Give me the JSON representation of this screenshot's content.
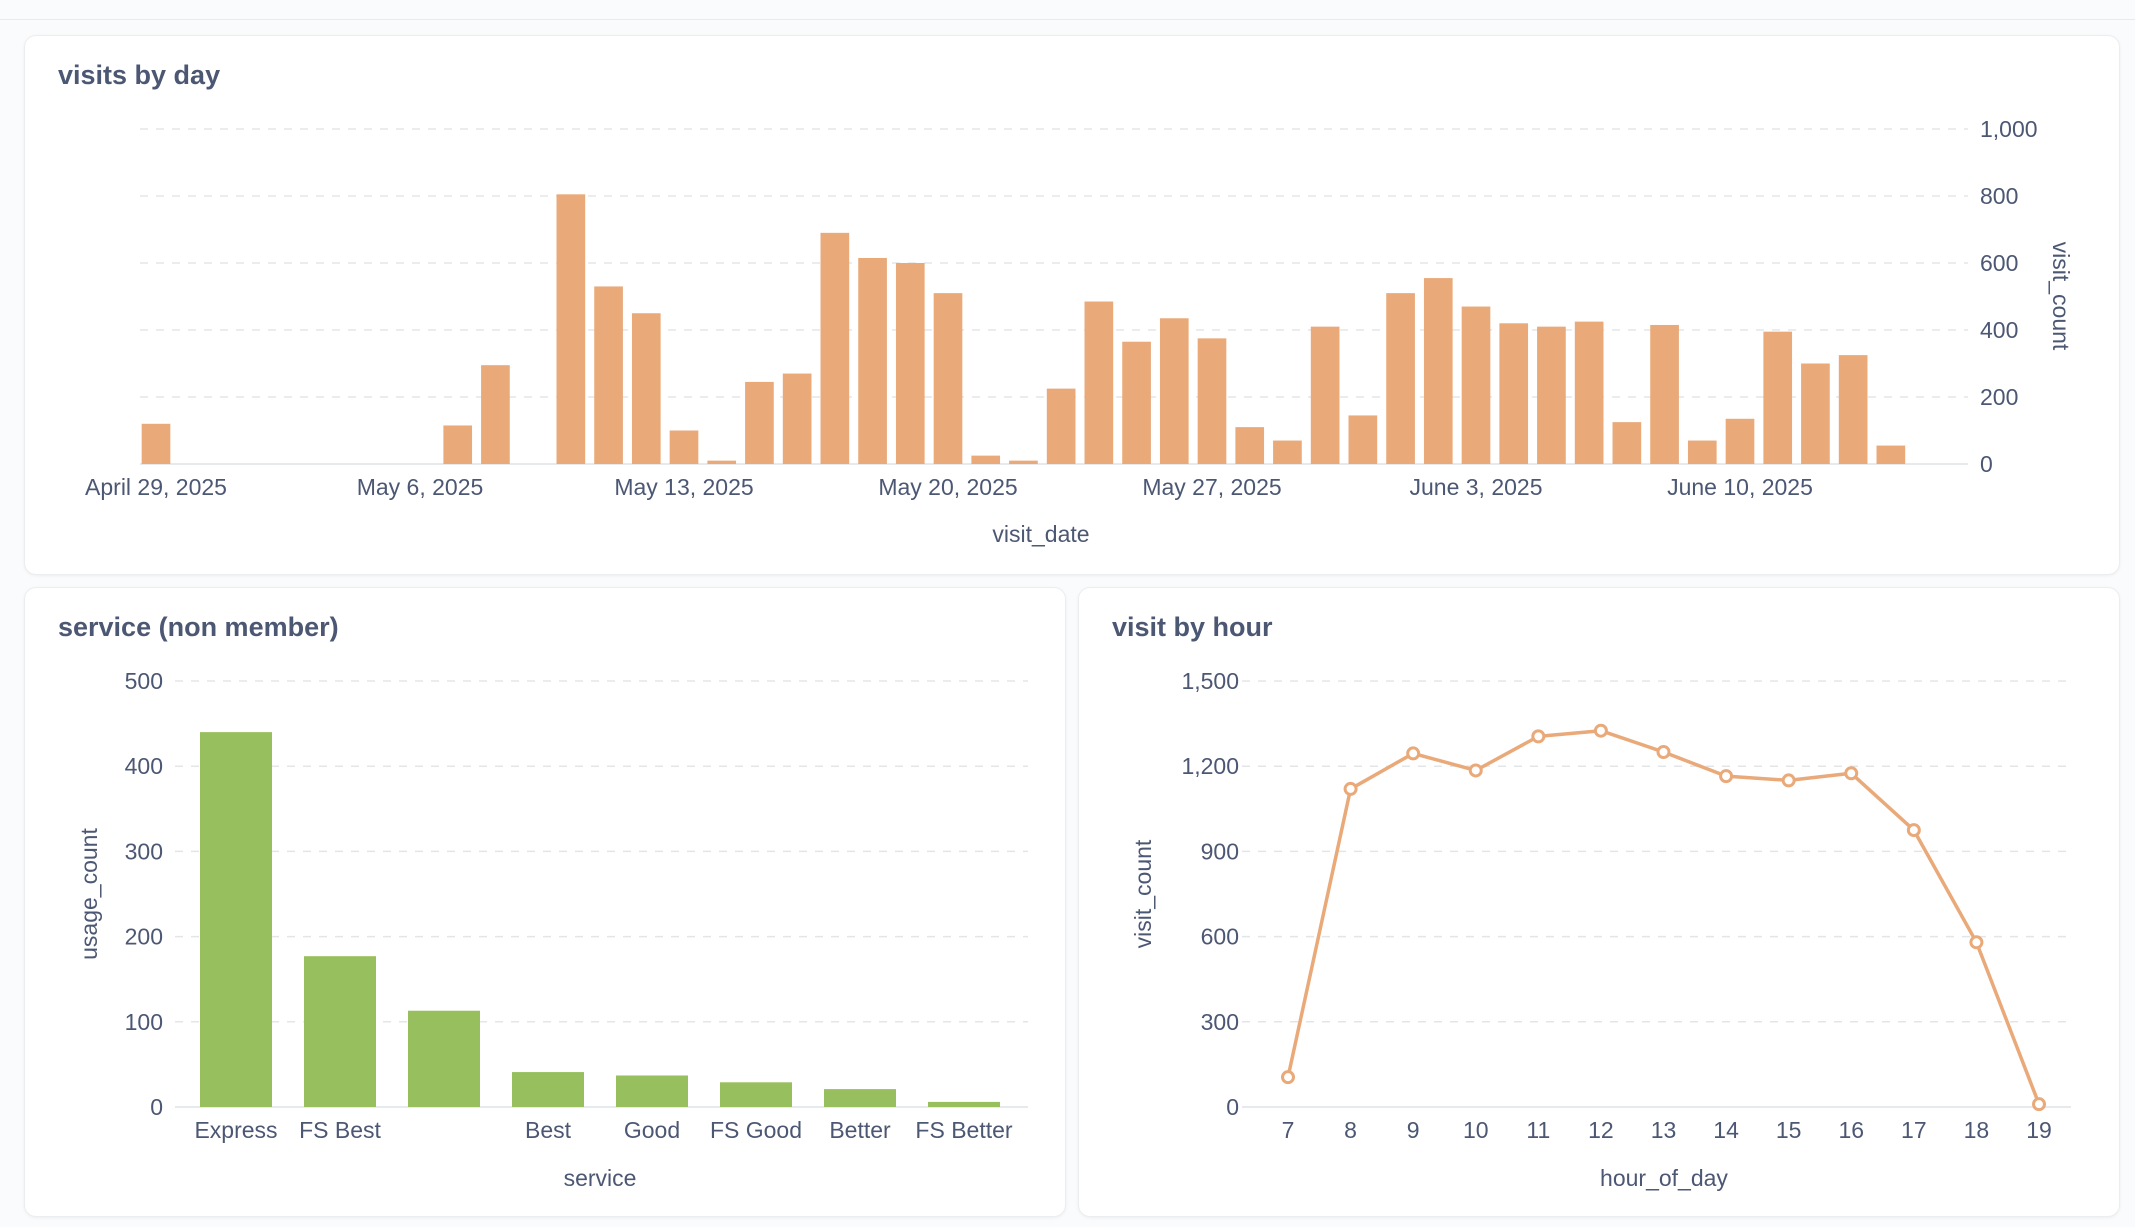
{
  "cards": {
    "visits_by_day": {
      "title": "visits by day"
    },
    "service": {
      "title": "service (non member)"
    },
    "visit_by_hour": {
      "title": "visit by hour"
    }
  },
  "colors": {
    "orange": "#e9a979",
    "green": "#98bf5d",
    "line": "#e9a979"
  },
  "chart_data": [
    {
      "type": "bar",
      "title": "visits by day",
      "xlabel": "visit_date",
      "ylabel": "visit_count",
      "y_axis_side": "right",
      "ylim": [
        0,
        1000
      ],
      "yticks": [
        0,
        200,
        400,
        600,
        800,
        1000
      ],
      "ytick_labels": [
        "0",
        "200",
        "400",
        "600",
        "800",
        "1,000"
      ],
      "x_tick_labels": [
        "April 29, 2025",
        "May 6, 2025",
        "May 13, 2025",
        "May 20, 2025",
        "May 27, 2025",
        "June 3, 2025",
        "June 10, 2025"
      ],
      "x_tick_dates": [
        "2025-04-29",
        "2025-05-06",
        "2025-05-13",
        "2025-05-20",
        "2025-05-27",
        "2025-06-03",
        "2025-06-10"
      ],
      "grid": true,
      "x": [
        "2025-04-29",
        "2025-05-07",
        "2025-05-08",
        "2025-05-10",
        "2025-05-11",
        "2025-05-12",
        "2025-05-13",
        "2025-05-14",
        "2025-05-15",
        "2025-05-16",
        "2025-05-17",
        "2025-05-18",
        "2025-05-19",
        "2025-05-20",
        "2025-05-21",
        "2025-05-22",
        "2025-05-23",
        "2025-05-24",
        "2025-05-25",
        "2025-05-26",
        "2025-05-27",
        "2025-05-28",
        "2025-05-29",
        "2025-05-30",
        "2025-05-31",
        "2025-06-01",
        "2025-06-02",
        "2025-06-03",
        "2025-06-04",
        "2025-06-05",
        "2025-06-06",
        "2025-06-07",
        "2025-06-08",
        "2025-06-09",
        "2025-06-10",
        "2025-06-11",
        "2025-06-12",
        "2025-06-13",
        "2025-06-14",
        "2025-06-17"
      ],
      "values": [
        120,
        115,
        295,
        805,
        530,
        450,
        100,
        10,
        245,
        270,
        690,
        615,
        600,
        510,
        25,
        10,
        225,
        485,
        365,
        435,
        375,
        110,
        70,
        410,
        145,
        510,
        555,
        470,
        420,
        410,
        425,
        125,
        415,
        70,
        135,
        395,
        300,
        325,
        55,
        0
      ]
    },
    {
      "type": "bar",
      "title": "service (non member)",
      "xlabel": "service",
      "ylabel": "usage_count",
      "ylim": [
        0,
        500
      ],
      "yticks": [
        0,
        100,
        200,
        300,
        400,
        500
      ],
      "grid": true,
      "categories": [
        "Express",
        "FS Best",
        "",
        "Best",
        "Good",
        "FS Good",
        "Better",
        "FS Better"
      ],
      "values": [
        440,
        177,
        113,
        41,
        37,
        29,
        21,
        6
      ]
    },
    {
      "type": "line",
      "title": "visit by hour",
      "xlabel": "hour_of_day",
      "ylabel": "visit_count",
      "ylim": [
        0,
        1500
      ],
      "yticks": [
        0,
        300,
        600,
        900,
        1200,
        1500
      ],
      "ytick_labels": [
        "0",
        "300",
        "600",
        "900",
        "1,200",
        "1,500"
      ],
      "grid": true,
      "x": [
        7,
        8,
        9,
        10,
        11,
        12,
        13,
        14,
        15,
        16,
        17,
        18,
        19
      ],
      "values": [
        105,
        1120,
        1245,
        1185,
        1305,
        1325,
        1250,
        1165,
        1150,
        1175,
        975,
        580,
        10
      ]
    }
  ]
}
